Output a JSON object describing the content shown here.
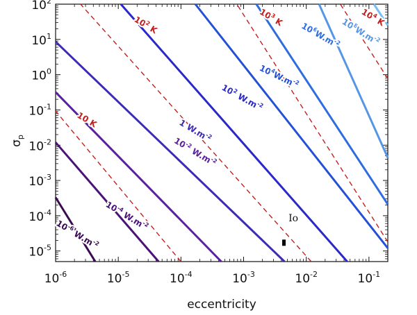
{
  "chart_data": {
    "type": "line",
    "xlabel": "eccentricity",
    "ylabel_main": "σ",
    "ylabel_sub": "p",
    "x_scale": "log",
    "y_scale": "log",
    "xlim": [
      1e-06,
      0.2
    ],
    "ylim": [
      5e-06,
      100
    ],
    "x_ticks": [
      {
        "value": 1e-06,
        "base": "10",
        "exp": "-6"
      },
      {
        "value": 1e-05,
        "base": "10",
        "exp": "-5"
      },
      {
        "value": 0.0001,
        "base": "10",
        "exp": "-4"
      },
      {
        "value": 0.001,
        "base": "10",
        "exp": "-3"
      },
      {
        "value": 0.01,
        "base": "10",
        "exp": "-2"
      },
      {
        "value": 0.1,
        "base": "10",
        "exp": "-1"
      }
    ],
    "y_ticks": [
      {
        "value": 1e-05,
        "base": "10",
        "exp": "-5"
      },
      {
        "value": 0.0001,
        "base": "10",
        "exp": "-4"
      },
      {
        "value": 0.001,
        "base": "10",
        "exp": "-3"
      },
      {
        "value": 0.01,
        "base": "10",
        "exp": "-2"
      },
      {
        "value": 0.1,
        "base": "10",
        "exp": "-1"
      },
      {
        "value": 1,
        "base": "10",
        "exp": "0"
      },
      {
        "value": 10,
        "base": "10",
        "exp": "1"
      },
      {
        "value": 100,
        "base": "10",
        "exp": "2"
      }
    ],
    "flux_series": [
      {
        "name": "1e-6 W.m-2",
        "label": {
          "base": "10",
          "exp": "-6",
          "unit": " W.m",
          "unitexp": "-2"
        },
        "color": "#3a0a52",
        "x": [
          4.3e-06,
          1e-06
        ],
        "y": [
          5e-06,
          0.00033
        ],
        "label_pos": [
          2.1e-06,
          2.5e-05
        ],
        "label_angle": 31
      },
      {
        "name": "1e-4 W.m-2",
        "label": {
          "base": "10",
          "exp": "-4",
          "unit": " W.m",
          "unitexp": "-2"
        },
        "color": "#4b1278",
        "x": [
          4.4e-05,
          1e-06
        ],
        "y": [
          5e-06,
          0.012
        ],
        "label_pos": [
          1.3e-05,
          8.5e-05
        ],
        "label_angle": 31
      },
      {
        "name": "1e-2 W.m-2",
        "label": {
          "base": "10",
          "exp": "-2",
          "unit": " W.m",
          "unitexp": "-2"
        },
        "color": "#5a20a0",
        "x": [
          0.00044,
          1e-06
        ],
        "y": [
          5e-06,
          0.32
        ],
        "label_pos": [
          0.00016,
          0.0055
        ],
        "label_angle": 31
      },
      {
        "name": "1 W.m-2",
        "label": {
          "base": "1",
          "exp": "",
          "unit": " W.m",
          "unitexp": "-2"
        },
        "color": "#3b2bb8",
        "x": [
          0.0045,
          1e-06
        ],
        "y": [
          5e-06,
          8.6
        ],
        "label_pos": [
          0.00016,
          0.022
        ],
        "label_angle": 31
      },
      {
        "name": "1e2 W.m-2",
        "label": {
          "base": "10",
          "exp": "2",
          "unit": " W.m",
          "unitexp": "-2"
        },
        "color": "#2a28c8",
        "x": [
          0.045,
          1.1e-05
        ],
        "y": [
          5e-06,
          100
        ],
        "label_pos": [
          0.0009,
          0.19
        ],
        "label_angle": 29
      },
      {
        "name": "1e4 W.m-2",
        "label": {
          "base": "10",
          "exp": "4",
          "unit": "W.m",
          "unitexp": "-2"
        },
        "color": "#2450d8",
        "x": [
          0.2,
          0.00017
        ],
        "y": [
          1.2e-05,
          100
        ],
        "label_pos": [
          0.0035,
          0.75
        ],
        "label_angle": 26
      },
      {
        "name": "1e6 W.m-2",
        "label": {
          "base": "10",
          "exp": "6",
          "unit": "W.m",
          "unitexp": "-2"
        },
        "color": "#2f6ddf",
        "x": [
          0.2,
          0.0016
        ],
        "y": [
          0.00021,
          100
        ],
        "label_pos": [
          0.016,
          11
        ],
        "label_angle": 30
      },
      {
        "name": "1e8 W.m-2",
        "label": {
          "base": "10",
          "exp": "8",
          "unit": "W.m",
          "unitexp": "-2"
        },
        "color": "#5596e6",
        "x": [
          0.2,
          0.016
        ],
        "y": [
          0.0044,
          100
        ],
        "label_pos": [
          0.07,
          14
        ],
        "label_angle": 32
      },
      {
        "name": "1e10 W.m-2",
        "label": {
          "base": "10",
          "exp": "10",
          "unit": " W.m",
          "unitexp": "-2"
        },
        "color": "#74c0f2",
        "x": [
          0.2,
          0.12
        ],
        "y": [
          25,
          100
        ],
        "label_pos": [
          0.045,
          260
        ],
        "label_angle": 0
      }
    ],
    "temperature_series": [
      {
        "name": "10 K",
        "label": {
          "base": "10",
          "exp": "",
          "unit": " K"
        },
        "color": "#c41e1e",
        "x": [
          0.0001,
          1e-06
        ],
        "y": [
          5e-06,
          0.093
        ],
        "label_pos": [
          3e-06,
          0.045
        ],
        "label_angle": 31
      },
      {
        "name": "1e2 K",
        "label": {
          "base": "10",
          "exp": "2",
          "unit": " K"
        },
        "color": "#c41e1e",
        "x": [
          0.012,
          2.5e-06
        ],
        "y": [
          5e-06,
          100
        ],
        "label_pos": [
          2.6e-05,
          22
        ],
        "label_angle": 31
      },
      {
        "name": "1e3 K",
        "label": {
          "base": "10",
          "exp": "3",
          "unit": " K"
        },
        "color": "#c41e1e",
        "x": [
          0.2,
          0.00078
        ],
        "y": [
          1.8e-05,
          100
        ],
        "label_pos": [
          0.0026,
          36
        ],
        "label_angle": 31
      },
      {
        "name": "1e4 K",
        "label": {
          "base": "10",
          "exp": "4",
          "unit": " K"
        },
        "color": "#c41e1e",
        "x": [
          0.2,
          0.035
        ],
        "y": [
          0.77,
          100
        ],
        "label_pos": [
          0.11,
          36
        ],
        "label_angle": 31
      }
    ],
    "io": {
      "label": "Io",
      "x": 0.0044,
      "y_low": 1.4e-05,
      "y_high": 2.1e-05,
      "label_pos": [
        0.0052,
        7e-05
      ]
    }
  }
}
